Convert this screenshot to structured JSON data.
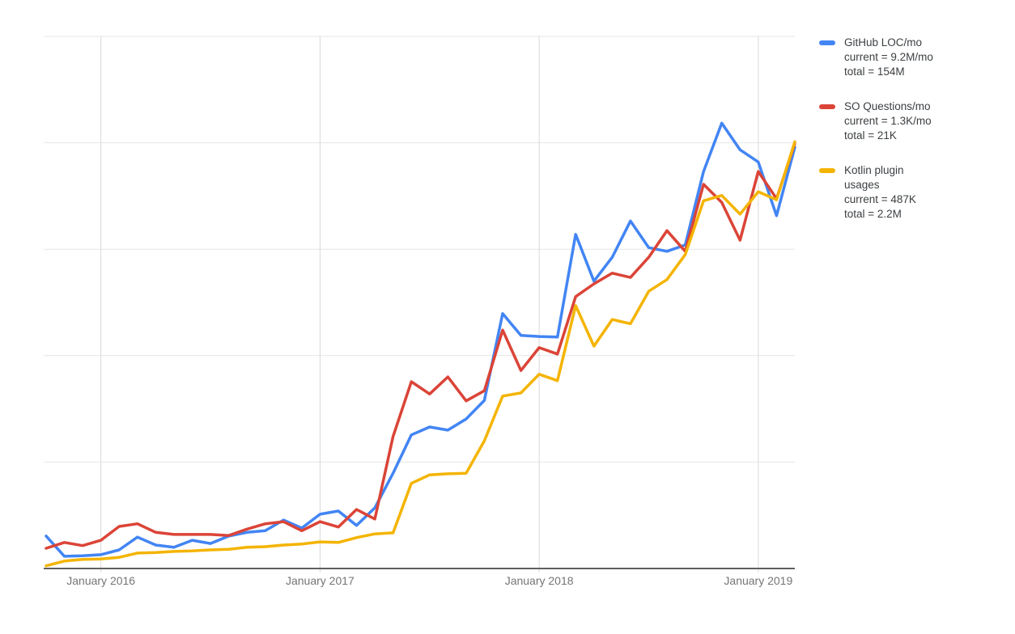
{
  "chart_data": {
    "type": "line",
    "title": "",
    "grid": true,
    "legend_position": "right",
    "ylim": [
      0,
      105
    ],
    "y_axis_tick_labels_visible": false,
    "x_axis_tick_labels": [
      "January 2016",
      "January 2017",
      "January 2018",
      "January 2019"
    ],
    "x": [
      "2015-10",
      "2015-11",
      "2015-12",
      "2016-01",
      "2016-02",
      "2016-03",
      "2016-04",
      "2016-05",
      "2016-06",
      "2016-07",
      "2016-08",
      "2016-09",
      "2016-10",
      "2016-11",
      "2016-12",
      "2017-01",
      "2017-02",
      "2017-03",
      "2017-04",
      "2017-05",
      "2017-06",
      "2017-07",
      "2017-08",
      "2017-09",
      "2017-10",
      "2017-11",
      "2017-12",
      "2018-01",
      "2018-02",
      "2018-03",
      "2018-04",
      "2018-05",
      "2018-06",
      "2018-07",
      "2018-08",
      "2018-09",
      "2018-10",
      "2018-11",
      "2018-12",
      "2019-01",
      "2019-02",
      "2019-03"
    ],
    "series": [
      {
        "name": "GitHub LOC/mo",
        "current": "9.2M/mo",
        "total": "154M",
        "color": "#4285f4",
        "values": [
          6.1,
          2.3,
          2.4,
          2.6,
          3.5,
          5.9,
          4.4,
          4.0,
          5.3,
          4.7,
          6.1,
          6.8,
          7.1,
          9.1,
          7.6,
          10.2,
          10.8,
          8.1,
          11.4,
          17.9,
          25.1,
          26.6,
          26.0,
          28.1,
          31.6,
          47.9,
          43.8,
          43.6,
          43.5,
          62.8,
          54.0,
          58.5,
          65.3,
          60.3,
          59.6,
          60.8,
          74.6,
          83.7,
          78.7,
          76.4,
          66.3,
          79.2
        ]
      },
      {
        "name": "SO Questions/mo",
        "current": "1.3K/mo",
        "total": "21K",
        "color": "#db4437",
        "values": [
          3.8,
          4.9,
          4.3,
          5.3,
          7.9,
          8.4,
          6.8,
          6.4,
          6.4,
          6.4,
          6.2,
          7.4,
          8.4,
          8.8,
          7.1,
          8.8,
          7.8,
          11.1,
          9.3,
          24.8,
          35.1,
          32.8,
          36.0,
          31.5,
          33.4,
          44.8,
          37.2,
          41.5,
          40.3,
          51.1,
          53.5,
          55.5,
          54.7,
          58.5,
          63.5,
          59.6,
          72.2,
          68.8,
          61.7,
          74.6,
          69.5,
          79.9
        ]
      },
      {
        "name": "Kotlin plugin usages",
        "current": "487K",
        "total": "2.2M",
        "color": "#f4b400",
        "values": [
          0.5,
          1.4,
          1.7,
          1.8,
          2.1,
          2.9,
          3.0,
          3.2,
          3.3,
          3.5,
          3.6,
          4.0,
          4.1,
          4.4,
          4.6,
          5.0,
          4.9,
          5.8,
          6.5,
          6.7,
          16.0,
          17.6,
          17.8,
          17.9,
          24.0,
          32.4,
          33.0,
          36.5,
          35.3,
          49.4,
          41.8,
          46.8,
          46.0,
          52.1,
          54.3,
          59.0,
          69.1,
          70.1,
          66.6,
          70.8,
          69.3,
          80.2
        ]
      }
    ]
  },
  "legend": {
    "items": [
      {
        "series": "github-loc",
        "color": "#4285f4",
        "lines": [
          "GitHub LOC/mo",
          "current = 9.2M/mo",
          "total = 154M"
        ]
      },
      {
        "series": "so-questions",
        "color": "#db4437",
        "lines": [
          "SO Questions/mo",
          "current = 1.3K/mo",
          "total = 21K"
        ]
      },
      {
        "series": "kotlin-plugin",
        "color": "#f4b400",
        "lines": [
          "Kotlin plugin",
          "usages",
          "current = 487K",
          "total = 2.2M"
        ]
      }
    ]
  },
  "colors": {
    "h_gridline": "#e6e6e6",
    "v_gridline": "#d9d9d9",
    "axis_line": "#5f5f5f",
    "axis_label": "#757575",
    "legend_text": "#3c4043",
    "background": "#ffffff"
  }
}
